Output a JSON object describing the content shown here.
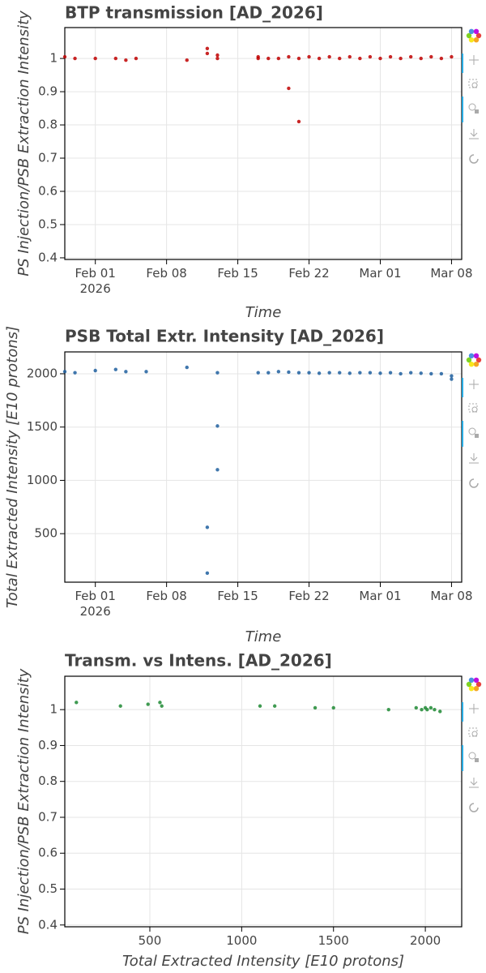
{
  "chart_data": [
    {
      "type": "scatter",
      "title": "BTP transmission [AD_2026]",
      "x_label": "Time",
      "y_label": "PS Injection/PSB Extraction Intensity",
      "color": "#c00000",
      "grid": true,
      "x": [
        "2026-01-29",
        "2026-01-30",
        "2026-02-01",
        "2026-02-03",
        "2026-02-04",
        "2026-02-05",
        "2026-02-10",
        "2026-02-12",
        "2026-02-12",
        "2026-02-13",
        "2026-02-13",
        "2026-02-17",
        "2026-02-17",
        "2026-02-18",
        "2026-02-19",
        "2026-02-20",
        "2026-02-21",
        "2026-02-21",
        "2026-02-22",
        "2026-02-23",
        "2026-02-24",
        "2026-02-25",
        "2026-02-26",
        "2026-02-27",
        "2026-02-28",
        "2026-03-01",
        "2026-03-02",
        "2026-03-03",
        "2026-03-04",
        "2026-03-05",
        "2026-03-06",
        "2026-03-07",
        "2026-03-08",
        "2026-02-20"
      ],
      "values": [
        1.005,
        1.0,
        1.0,
        1.0,
        0.995,
        1.0,
        0.995,
        1.03,
        1.015,
        1.01,
        1.0,
        1.0,
        1.005,
        1.0,
        1.0,
        1.005,
        1.0,
        0.81,
        1.005,
        1.0,
        1.005,
        1.0,
        1.005,
        1.0,
        1.005,
        1.0,
        1.005,
        1.0,
        1.005,
        1.0,
        1.005,
        1.0,
        1.005,
        0.91
      ],
      "xlim": [
        "2026-01-29",
        "2026-03-09"
      ],
      "xticks": [
        {
          "value": "2026-02-01",
          "label": "Feb 01\n2026"
        },
        {
          "value": "2026-02-08",
          "label": "Feb 08"
        },
        {
          "value": "2026-02-15",
          "label": "Feb 15"
        },
        {
          "value": "2026-02-22",
          "label": "Feb 22"
        },
        {
          "value": "2026-03-01",
          "label": "Mar 01"
        },
        {
          "value": "2026-03-08",
          "label": "Mar 08"
        }
      ],
      "ylim": [
        0.395,
        1.093
      ],
      "yticks": [
        0.4,
        0.5,
        0.6,
        0.7,
        0.8,
        0.9,
        1
      ]
    },
    {
      "type": "scatter",
      "title": "PSB Total Extr. Intensity [AD_2026]",
      "x_label": "Time",
      "y_label": "Total Extracted Intensity [E10 protons]",
      "color": "#1f5f9f",
      "grid": true,
      "x": [
        "2026-01-29",
        "2026-01-30",
        "2026-02-01",
        "2026-02-03",
        "2026-02-04",
        "2026-02-06",
        "2026-02-10",
        "2026-02-12",
        "2026-02-12",
        "2026-02-13",
        "2026-02-13",
        "2026-02-13",
        "2026-02-17",
        "2026-02-18",
        "2026-02-19",
        "2026-02-20",
        "2026-02-21",
        "2026-02-22",
        "2026-02-23",
        "2026-02-24",
        "2026-02-25",
        "2026-02-26",
        "2026-02-27",
        "2026-02-28",
        "2026-03-01",
        "2026-03-02",
        "2026-03-03",
        "2026-03-04",
        "2026-03-05",
        "2026-03-06",
        "2026-03-07",
        "2026-03-08",
        "2026-03-08"
      ],
      "values": [
        2020,
        2010,
        2030,
        2040,
        2020,
        2020,
        2060,
        560,
        130,
        1100,
        1510,
        2010,
        2010,
        2010,
        2020,
        2015,
        2010,
        2010,
        2005,
        2010,
        2010,
        2005,
        2010,
        2010,
        2005,
        2010,
        2000,
        2010,
        2005,
        2000,
        2000,
        1980,
        1950
      ],
      "xlim": [
        "2026-01-29",
        "2026-03-09"
      ],
      "xticks": [
        {
          "value": "2026-02-01",
          "label": "Feb 01\n2026"
        },
        {
          "value": "2026-02-08",
          "label": "Feb 08"
        },
        {
          "value": "2026-02-15",
          "label": "Feb 15"
        },
        {
          "value": "2026-02-22",
          "label": "Feb 22"
        },
        {
          "value": "2026-03-01",
          "label": "Mar 01"
        },
        {
          "value": "2026-03-08",
          "label": "Mar 08"
        }
      ],
      "ylim": [
        45,
        2205
      ],
      "yticks": [
        500,
        1000,
        1500,
        2000
      ]
    },
    {
      "type": "scatter",
      "title": "Transm. vs Intens. [AD_2026]",
      "x_label": "Total Extracted Intensity [E10 protons]",
      "y_label": "PS Injection/PSB Extraction Intensity",
      "color": "#1e8a34",
      "grid": true,
      "x": [
        100,
        340,
        490,
        555,
        565,
        1100,
        1180,
        1400,
        1500,
        1800,
        1950,
        1980,
        2000,
        2010,
        2030,
        2050,
        2080
      ],
      "values": [
        1.02,
        1.01,
        1.015,
        1.02,
        1.01,
        1.01,
        1.01,
        1.005,
        1.005,
        1.0,
        1.005,
        1.0,
        1.005,
        1.0,
        1.005,
        1.0,
        0.995
      ],
      "xlim": [
        37,
        2198
      ],
      "xticks": [
        500,
        1000,
        1500,
        2000
      ],
      "ylim": [
        0.395,
        1.093
      ],
      "yticks": [
        0.4,
        0.5,
        0.6,
        0.7,
        0.8,
        0.9,
        1
      ]
    }
  ]
}
